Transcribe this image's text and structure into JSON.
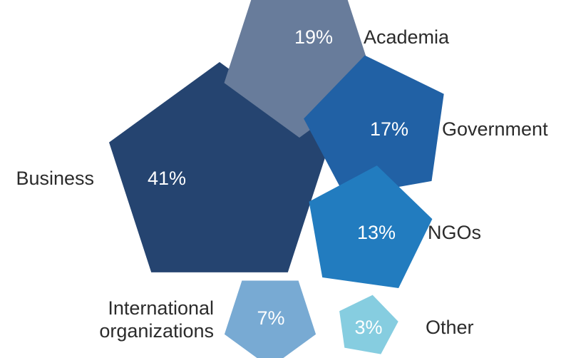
{
  "chart_data": {
    "type": "pentagon-proportional",
    "title": "",
    "categories": [
      "Business",
      "Academia",
      "Government",
      "NGOs",
      "International organizations",
      "Other"
    ],
    "values": [
      41,
      19,
      17,
      13,
      7,
      3
    ],
    "value_labels": [
      "41%",
      "19%",
      "17%",
      "13%",
      "7%",
      "3%"
    ],
    "label_lines": [
      [
        "Business"
      ],
      [
        "Academia"
      ],
      [
        "Government"
      ],
      [
        "NGOs"
      ],
      [
        "International",
        "organizations"
      ],
      [
        "Other"
      ]
    ],
    "colors": [
      "#254470",
      "#687c9b",
      "#2161a5",
      "#227cbf",
      "#78aad3",
      "#86cde0"
    ],
    "label_color": "#2b2b2b",
    "value_label_color": "#ffffff"
  }
}
